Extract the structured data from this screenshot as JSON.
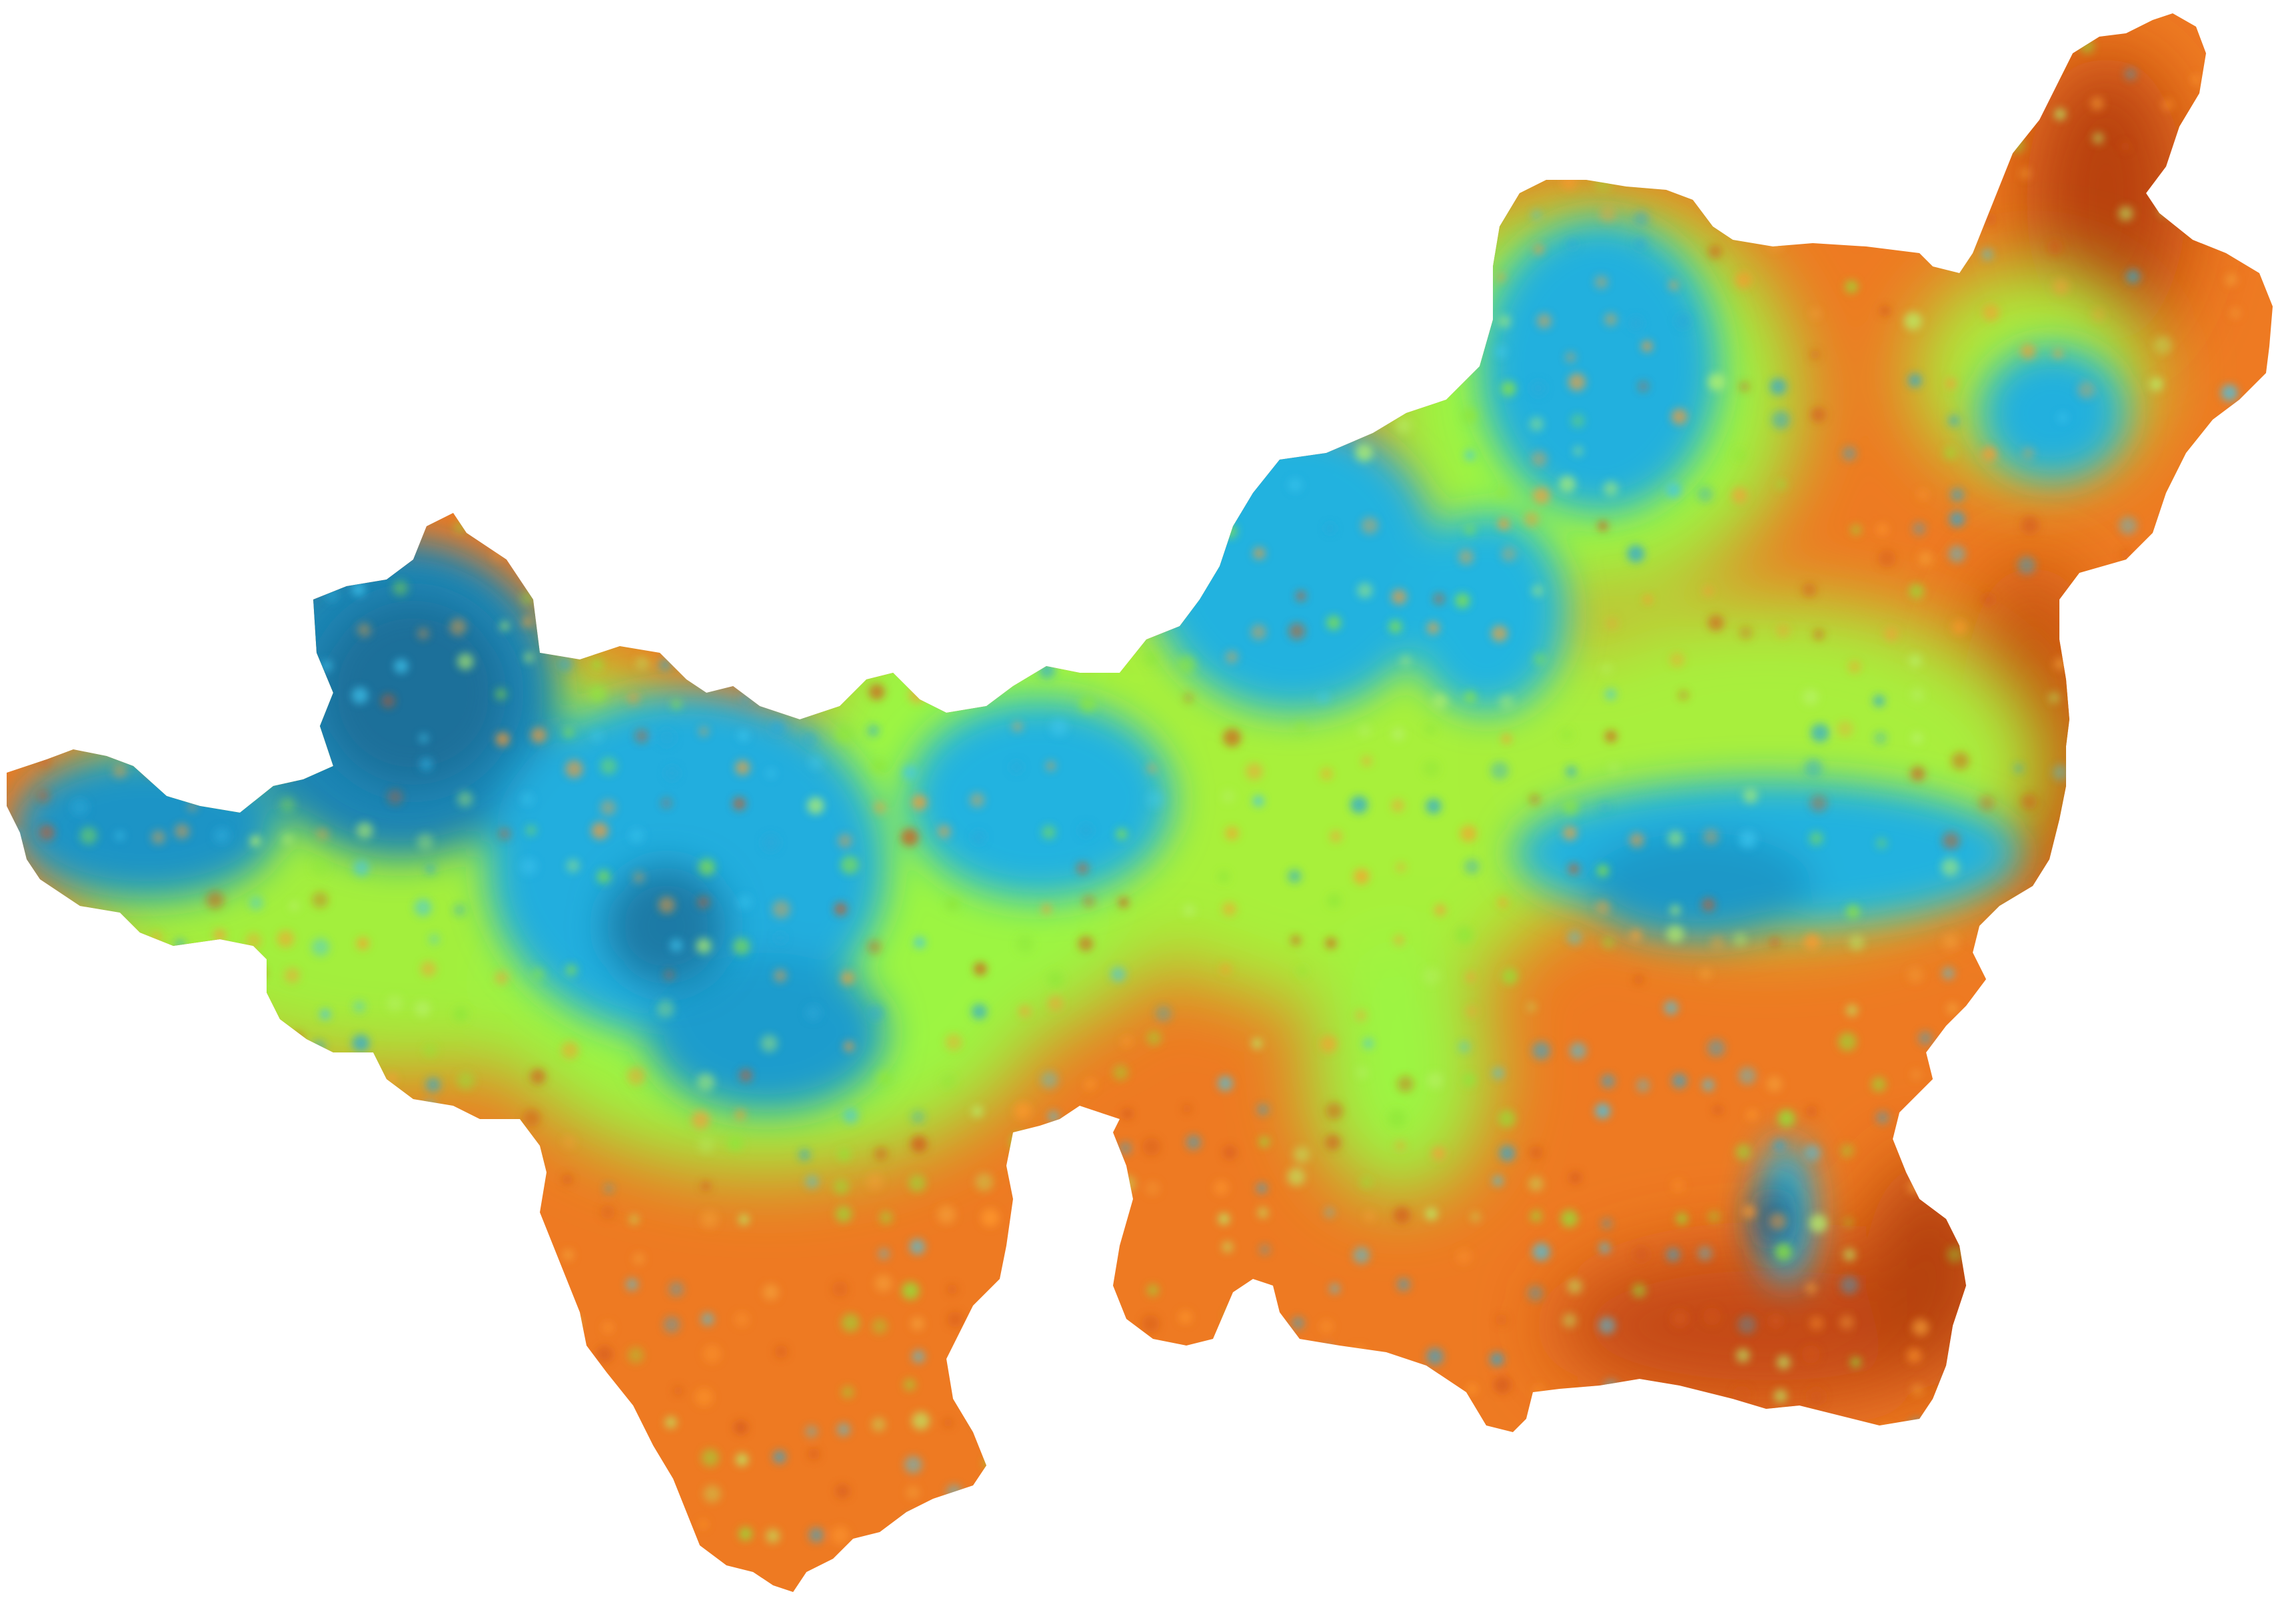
{
  "map": {
    "kind": "interpolated raster heatmap clipped to a region outline",
    "colormap": [
      "#0f1f4a",
      "#1e88b8",
      "#22b5e0",
      "#9cf542",
      "#f07a20",
      "#c44a10",
      "#5a1008"
    ],
    "colors": {
      "background": "#ffffff",
      "low": "#1e90c0",
      "mid": "#9cf542",
      "high": "#f07a20",
      "peak": "#8a1e0a"
    },
    "legend_present": false,
    "labels_present": false
  }
}
